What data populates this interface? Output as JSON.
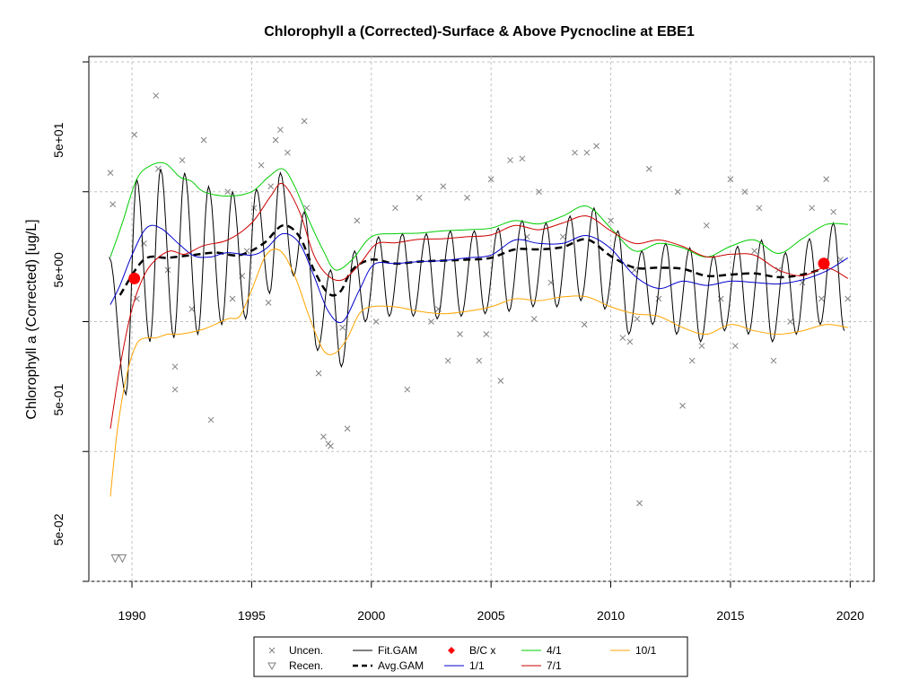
{
  "chart_data": {
    "type": "scatter",
    "title": "Chlorophyll a (Corrected)-Surface & Above Pycnocline at EBE1",
    "xlabel": "",
    "ylabel": "Chlorophyll a (Corrected) [ug/L]",
    "y_scale": "log",
    "xlim": [
      1988.2,
      2021.0
    ],
    "ylim": [
      0.02,
      220
    ],
    "x_ticks": [
      1990,
      1995,
      2000,
      2005,
      2010,
      2015,
      2020
    ],
    "x_tick_labels": [
      "1990",
      "1995",
      "2000",
      "2005",
      "2010",
      "2015",
      "2020"
    ],
    "y_ticks": [
      0.05,
      0.5,
      5,
      50
    ],
    "y_tick_labels": [
      "5e-02",
      "5e-01",
      "5e+00",
      "5e+01"
    ],
    "y_gridlines": [
      0.02,
      0.2,
      2,
      20,
      200
    ],
    "grid": true,
    "legend": {
      "placement": "bottom",
      "entries": [
        {
          "label": "Uncen.",
          "symbol": "x",
          "color": "#808080"
        },
        {
          "label": "Recen.",
          "symbol": "triangle-down",
          "color": "#808080"
        },
        {
          "label": "Fit.GAM",
          "symbol": "line",
          "color": "#000000"
        },
        {
          "label": "Avg.GAM",
          "symbol": "dashed-line",
          "color": "#000000"
        },
        {
          "label": "B/C x",
          "symbol": "diamond",
          "color": "#ff0000"
        },
        {
          "label": "1/1",
          "symbol": "line",
          "color": "#0000cd"
        },
        {
          "label": "4/1",
          "symbol": "line",
          "color": "#00cd00"
        },
        {
          "label": "7/1",
          "symbol": "line",
          "color": "#cd0000"
        },
        {
          "label": "10/1",
          "symbol": "line",
          "color": "#ffa500"
        }
      ]
    },
    "colors": {
      "uncen": "#808080",
      "fit_gam": "#000000",
      "avg_gam": "#000000",
      "bc_marker": "#ff0000",
      "jan1": "#0000cd",
      "apr1": "#00cd00",
      "jul1": "#cd0000",
      "oct1": "#ffa500",
      "grid": "#c0c0c0"
    },
    "series": [
      {
        "name": "Avg.GAM",
        "x": [
          1989.5,
          1990.5,
          1991.5,
          1992.5,
          1993.5,
          1994.5,
          1995.5,
          1996.3,
          1997,
          1997.6,
          1998.2,
          1998.7,
          1999.2,
          2000,
          2001,
          2002,
          2003,
          2004,
          2005,
          2006,
          2007,
          2008,
          2009,
          2010,
          2011,
          2012,
          2013,
          2014,
          2015,
          2016,
          2017,
          2018,
          2019
        ],
        "y": [
          3.2,
          6,
          6.2,
          6.5,
          6.8,
          6.5,
          8,
          11,
          9,
          5,
          3.3,
          3.4,
          5,
          6,
          5.6,
          5.8,
          5.9,
          6,
          6.2,
          7.2,
          7.2,
          7.5,
          8.6,
          6.4,
          5.2,
          5.2,
          5.1,
          4.5,
          4.6,
          4.7,
          4.4,
          4.6,
          5.2
        ]
      },
      {
        "name": "1/1",
        "x": [
          1989.1,
          1989.5,
          1990,
          1990.6,
          1991.2,
          1992,
          1992.6,
          1993.3,
          1994,
          1995,
          1995.6,
          1996.3,
          1997,
          1997.6,
          1998.2,
          1998.8,
          1999.5,
          2000.1,
          2001,
          2002,
          2003,
          2004,
          2005,
          2006,
          2007,
          2008,
          2009,
          2010,
          2011,
          2012,
          2013,
          2014,
          2015,
          2016,
          2017,
          2018,
          2019,
          2019.9
        ],
        "y": [
          2.7,
          3.8,
          6.5,
          10.5,
          10.5,
          7.8,
          6.4,
          6.3,
          6.8,
          6.5,
          7.3,
          9.5,
          8,
          4.5,
          2.4,
          2,
          3.5,
          5.5,
          5.6,
          5.8,
          5.9,
          6.2,
          6.5,
          8.5,
          8,
          8,
          9.2,
          7.3,
          4.5,
          3.6,
          4.1,
          3.8,
          4.1,
          4,
          3.9,
          4.2,
          4.9,
          6.2
        ]
      },
      {
        "name": "4/1",
        "x": [
          1989.1,
          1989.6,
          1990.2,
          1990.8,
          1991.4,
          1992,
          1992.5,
          1993,
          1994,
          1995,
          1995.7,
          1996.3,
          1996.8,
          1997.4,
          1998,
          1998.5,
          1999.2,
          2000,
          2001,
          2002,
          2003,
          2004,
          2005,
          2006,
          2007,
          2008,
          2009,
          2010,
          2011,
          2012,
          2013,
          2014,
          2015,
          2016,
          2017,
          2018,
          2019,
          2019.9
        ],
        "y": [
          6.3,
          11.5,
          25,
          32,
          33,
          26,
          24,
          20,
          18.5,
          20,
          26,
          30,
          22,
          12,
          7,
          5,
          6,
          9,
          9.5,
          9.6,
          10,
          10.2,
          10.5,
          12,
          11.3,
          13,
          15.5,
          10.5,
          7,
          8,
          7.4,
          6.3,
          7.6,
          8.5,
          6.7,
          8.7,
          11.2,
          11.2
        ]
      },
      {
        "name": "7/1",
        "x": [
          1989.1,
          1989.5,
          1990,
          1990.5,
          1991,
          1991.6,
          1992.2,
          1993,
          1994,
          1995,
          1995.8,
          1996.3,
          1997,
          1997.6,
          1998.2,
          1998.8,
          1999.5,
          2000.2,
          2001,
          2002,
          2003,
          2004,
          2005,
          2006,
          2007,
          2008,
          2009,
          2010,
          2011,
          2012,
          2013,
          2014,
          2015,
          2016,
          2017,
          2018,
          2019,
          2019.9
        ],
        "y": [
          0.3,
          0.9,
          2.5,
          4.5,
          6,
          7,
          6.6,
          7.7,
          8.5,
          11.5,
          18.5,
          23,
          14,
          6.5,
          4.5,
          4.2,
          5.5,
          7.9,
          8.1,
          8.6,
          8.7,
          9,
          9.3,
          11,
          10.2,
          11.5,
          13,
          10,
          8,
          8.5,
          7.6,
          6.3,
          6.6,
          6.5,
          5,
          4.5,
          5.2,
          4.3
        ]
      },
      {
        "name": "10/1",
        "x": [
          1989.1,
          1989.4,
          1989.8,
          1990.2,
          1990.6,
          1991,
          1991.5,
          1992,
          1993,
          1994,
          1994.5,
          1995,
          1995.6,
          1996.2,
          1996.8,
          1997.4,
          1998,
          1998.5,
          1999,
          1999.5,
          2000,
          2001,
          2002,
          2003,
          2004,
          2005,
          2006,
          2007,
          2008,
          2009,
          2010,
          2011,
          2012,
          2013,
          2014,
          2015,
          2016,
          2017,
          2018,
          2019,
          2019.9
        ],
        "y": [
          0.09,
          0.3,
          0.8,
          1.35,
          1.5,
          1.5,
          1.6,
          1.6,
          1.75,
          2.1,
          2.2,
          3.5,
          6.5,
          7,
          4.5,
          2.2,
          1.2,
          1.15,
          1.5,
          2.3,
          2.6,
          2.6,
          2.4,
          2.3,
          2.4,
          2.6,
          3,
          2.9,
          3.1,
          3.1,
          2.6,
          2.3,
          2.2,
          1.8,
          1.6,
          1.9,
          1.7,
          1.6,
          1.7,
          1.9,
          1.8
        ]
      },
      {
        "name": "B/C x",
        "x": [
          1990.1,
          2018.9
        ],
        "y": [
          4.3,
          5.6
        ]
      }
    ],
    "fit_gam": {
      "x_start": 1989.05,
      "x_end": 2019.95,
      "peaks": [
        [
          1989.05,
          6.3
        ],
        [
          1990.2,
          25
        ],
        [
          1991.2,
          30
        ],
        [
          1992.2,
          28
        ],
        [
          1993.2,
          22
        ],
        [
          1994.2,
          20
        ],
        [
          1995.2,
          21
        ],
        [
          1996.2,
          28
        ],
        [
          1997.2,
          14
        ],
        [
          1998.3,
          5
        ],
        [
          1999.3,
          7
        ],
        [
          2000.3,
          9
        ],
        [
          2001.3,
          9.5
        ],
        [
          2002.3,
          9.5
        ],
        [
          2003.3,
          10
        ],
        [
          2004.3,
          10
        ],
        [
          2005.3,
          10.5
        ],
        [
          2006.3,
          12
        ],
        [
          2007.3,
          11.5
        ],
        [
          2008.3,
          13
        ],
        [
          2009.3,
          15
        ],
        [
          2010.3,
          10
        ],
        [
          2011.3,
          7
        ],
        [
          2012.3,
          8
        ],
        [
          2013.3,
          7.4
        ],
        [
          2014.3,
          6.4
        ],
        [
          2015.3,
          7.6
        ],
        [
          2016.3,
          8.5
        ],
        [
          2017.3,
          6.8
        ],
        [
          2018.3,
          8.7
        ],
        [
          2019.3,
          11.5
        ]
      ],
      "troughs": [
        [
          1989.75,
          0.55
        ],
        [
          1990.75,
          1.4
        ],
        [
          1991.75,
          1.5
        ],
        [
          1992.75,
          1.6
        ],
        [
          1993.75,
          1.9
        ],
        [
          1994.75,
          2.1
        ],
        [
          1995.75,
          3.3
        ],
        [
          1996.75,
          4.5
        ],
        [
          1997.75,
          1.2
        ],
        [
          1998.75,
          0.9
        ],
        [
          1999.75,
          2.0
        ],
        [
          2000.75,
          2.2
        ],
        [
          2001.75,
          2.2
        ],
        [
          2002.75,
          2.1
        ],
        [
          2003.75,
          2.2
        ],
        [
          2004.75,
          2.3
        ],
        [
          2005.75,
          2.4
        ],
        [
          2006.75,
          2.6
        ],
        [
          2007.75,
          2.6
        ],
        [
          2008.75,
          2.9
        ],
        [
          2009.75,
          2.5
        ],
        [
          2010.75,
          1.6
        ],
        [
          2011.75,
          1.9
        ],
        [
          2012.75,
          1.6
        ],
        [
          2013.75,
          1.4
        ],
        [
          2014.75,
          1.7
        ],
        [
          2015.75,
          1.6
        ],
        [
          2016.75,
          1.4
        ],
        [
          2017.75,
          1.6
        ],
        [
          2018.75,
          1.9
        ],
        [
          2019.75,
          1.7
        ]
      ]
    },
    "uncensored_points": {
      "x": [
        1989.1,
        1989.2,
        1990.1,
        1990.2,
        1990.5,
        1991,
        1991.1,
        1991.5,
        1991.8,
        1992.1,
        1992.5,
        1993,
        1993.3,
        1994,
        1994.2,
        1994.8,
        1995.1,
        1995.4,
        1995.7,
        1996,
        1996.2,
        1996.5,
        1997.2,
        1997.3,
        1997.8,
        1998,
        1998.2,
        1998.3,
        1999,
        1999.4,
        2000.2,
        2001,
        2001.5,
        2002,
        2002.5,
        2003,
        2003.2,
        2004,
        2004.5,
        2005,
        2005.4,
        2005.8,
        2006.3,
        2006.5,
        2007,
        2007.5,
        2008,
        2008.5,
        2009,
        2009.4,
        2010,
        2010.5,
        2011,
        2011.2,
        2011.6,
        2012,
        2012.8,
        2013,
        2013.4,
        2014,
        2014.6,
        2015,
        2015.2,
        2015.6,
        2016,
        2016.2,
        2016.8,
        2017,
        2017.5,
        2018,
        2018.4,
        2018.8,
        2019,
        2019.3,
        2019.6,
        2019.9,
        2010.8,
        2011.1,
        1991.8,
        1998.8,
        1995.8,
        1994.6,
        2003.7,
        2008.9,
        2006.8,
        2013.8,
        2002.8,
        2004.8
      ],
      "y": [
        28,
        16,
        55,
        3,
        8,
        110,
        30,
        5,
        0.6,
        35,
        2.5,
        50,
        0.35,
        20,
        3,
        7,
        15,
        32,
        2.8,
        50,
        60,
        40,
        70,
        15,
        0.8,
        0.26,
        0.23,
        0.22,
        0.3,
        12,
        2,
        15,
        0.6,
        18,
        2,
        22,
        1,
        18,
        1,
        25,
        0.7,
        35,
        36,
        9,
        20,
        4,
        9,
        40,
        40,
        45,
        12,
        1.5,
        5,
        0.08,
        30,
        3,
        20,
        0.45,
        1,
        11,
        3,
        25,
        1.3,
        20,
        7,
        15,
        1,
        5,
        2,
        4,
        15,
        3,
        25,
        14,
        6,
        3,
        1.4,
        2.1,
        0.9,
        1.8,
        22,
        4.5,
        1.6,
        1.9,
        2.1,
        1.3,
        2.5,
        1.6
      ]
    },
    "recensored_points": {
      "x": [
        1989.3,
        1989.6
      ],
      "y": [
        0.03,
        0.03
      ]
    }
  }
}
